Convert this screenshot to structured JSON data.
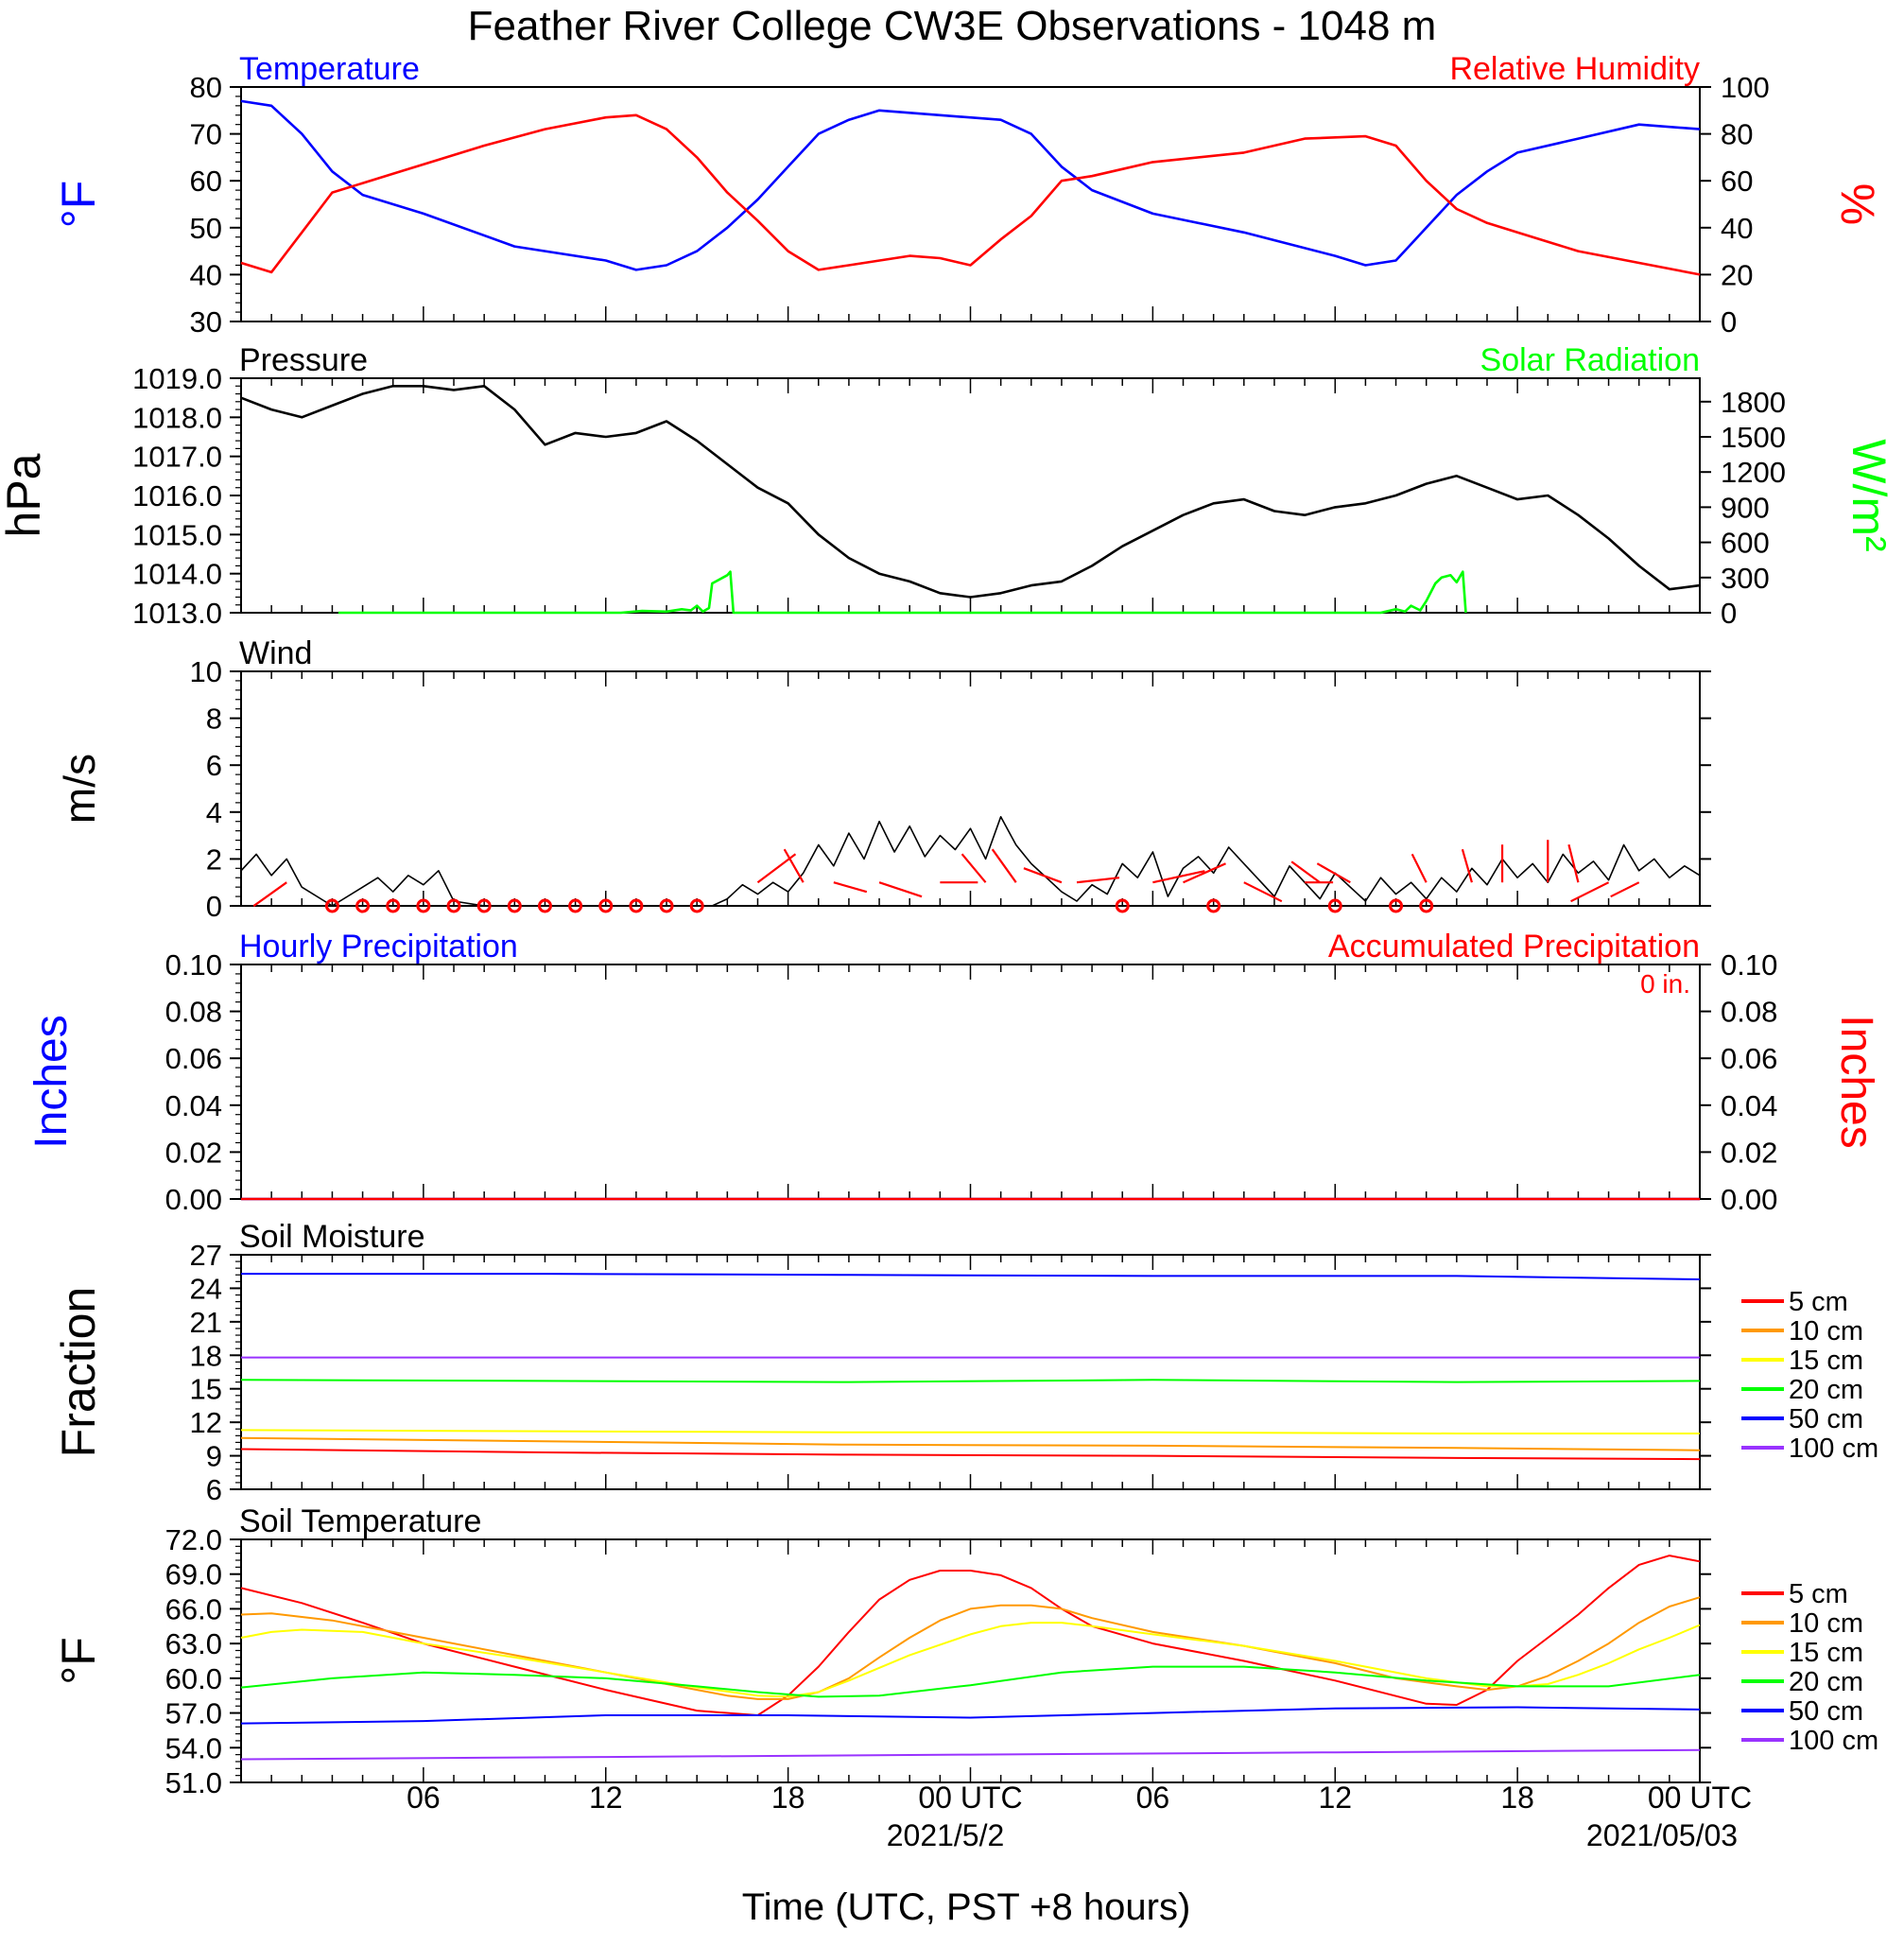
{
  "title": "Feather River College CW3E Observations - 1048 m",
  "x_axis": {
    "label": "Time (UTC, PST +8 hours)",
    "tick_labels": [
      "06",
      "12",
      "18",
      "00 UTC",
      "06",
      "12",
      "18",
      "00 UTC"
    ],
    "date_labels": [
      "2021/5/2",
      "2021/05/03"
    ]
  },
  "chart_data": [
    {
      "type": "line",
      "panel": "Temperature / Relative Humidity",
      "left_title": "Temperature",
      "right_title": "Relative Humidity",
      "ylabel_left": "°F",
      "ylabel_right": "%",
      "ylim_left": [
        30,
        80
      ],
      "ylim_right": [
        0,
        100
      ],
      "yticks_left": [
        "30",
        "40",
        "50",
        "60",
        "70",
        "80"
      ],
      "yticks_right": [
        "0",
        "20",
        "40",
        "60",
        "80",
        "100"
      ],
      "series": [
        {
          "name": "Temperature",
          "color": "#0000ff",
          "axis": "left",
          "x_hours": [
            0,
            1,
            2,
            3,
            4,
            6,
            9,
            12,
            13,
            14,
            15,
            16,
            17,
            18,
            19,
            20,
            21,
            23,
            25,
            26,
            27,
            28,
            30,
            33,
            36,
            37,
            38,
            39,
            40,
            41,
            42,
            44,
            46,
            48
          ],
          "values": [
            77,
            76,
            70,
            62,
            57,
            53,
            46,
            43,
            41,
            42,
            45,
            50,
            56,
            63,
            70,
            73,
            75,
            74,
            73,
            70,
            63,
            58,
            53,
            49,
            44,
            42,
            43,
            50,
            57,
            62,
            66,
            69,
            72,
            71
          ]
        },
        {
          "name": "Relative Humidity",
          "color": "#ff0000",
          "axis": "right",
          "x_hours": [
            0,
            1,
            2,
            3,
            5,
            8,
            10,
            12,
            13,
            14,
            15,
            16,
            17,
            18,
            19,
            20,
            22,
            23,
            24,
            25,
            26,
            27,
            28,
            29,
            30,
            33,
            35,
            37,
            38,
            39,
            40,
            41,
            42,
            44,
            46,
            48
          ],
          "values": [
            25,
            21,
            38,
            55,
            63,
            75,
            82,
            87,
            88,
            82,
            70,
            55,
            43,
            30,
            22,
            24,
            28,
            27,
            24,
            35,
            45,
            60,
            62,
            65,
            68,
            72,
            78,
            79,
            75,
            60,
            48,
            42,
            38,
            30,
            25,
            20
          ]
        }
      ]
    },
    {
      "type": "line",
      "panel": "Pressure / Solar Radiation",
      "left_title": "Pressure",
      "right_title": "Solar Radiation",
      "ylabel_left": "hPa",
      "ylabel_right": "W/m²",
      "ylim_left": [
        1013.0,
        1019.0
      ],
      "ylim_right": [
        0,
        2000
      ],
      "yticks_left": [
        "1013.0",
        "1014.0",
        "1015.0",
        "1016.0",
        "1017.0",
        "1018.0",
        "1019.0"
      ],
      "yticks_right": [
        "0",
        "300",
        "600",
        "900",
        "1200",
        "1500",
        "1800"
      ],
      "series": [
        {
          "name": "Pressure",
          "color": "#000000",
          "axis": "left",
          "x_hours": [
            0,
            1,
            2,
            3,
            4,
            5,
            6,
            7,
            8,
            9,
            10,
            11,
            12,
            13,
            14,
            15,
            16,
            17,
            18,
            19,
            20,
            21,
            22,
            23,
            24,
            25,
            26,
            27,
            28,
            29,
            30,
            31,
            32,
            33,
            34,
            35,
            36,
            37,
            38,
            39,
            40,
            41,
            42,
            43,
            44,
            45,
            46,
            47,
            48
          ],
          "values": [
            1018.5,
            1018.2,
            1018.0,
            1018.3,
            1018.6,
            1018.8,
            1018.8,
            1018.7,
            1018.8,
            1018.2,
            1017.3,
            1017.6,
            1017.5,
            1017.6,
            1017.9,
            1017.4,
            1016.8,
            1016.2,
            1015.8,
            1015.0,
            1014.4,
            1014.0,
            1013.8,
            1013.5,
            1013.4,
            1013.5,
            1013.7,
            1013.8,
            1014.2,
            1014.7,
            1015.1,
            1015.5,
            1015.8,
            1015.9,
            1015.6,
            1015.5,
            1015.7,
            1015.8,
            1016.0,
            1016.3,
            1016.5,
            1016.2,
            1015.9,
            1016.0,
            1015.5,
            1014.9,
            1014.2,
            1013.6,
            1013.7
          ]
        },
        {
          "name": "Solar Radiation",
          "color": "#00ff00",
          "axis": "right",
          "x_hours": [
            3.2,
            12.5,
            13.2,
            14.0,
            14.5,
            14.8,
            15.0,
            15.2,
            15.4,
            15.5,
            16.0,
            16.1,
            16.2,
            26.8,
            27.5,
            35.0,
            37.5,
            38.0,
            38.3,
            38.5,
            38.8,
            39.0,
            39.3,
            39.5,
            39.8,
            40.0,
            40.2,
            40.3
          ],
          "values": [
            0,
            0,
            15,
            10,
            30,
            20,
            60,
            10,
            40,
            250,
            320,
            350,
            0,
            0,
            0,
            0,
            0,
            30,
            10,
            60,
            20,
            100,
            250,
            300,
            320,
            260,
            350,
            0
          ]
        }
      ]
    },
    {
      "type": "line",
      "panel": "Wind",
      "left_title": "Wind",
      "ylabel_left": "m/s",
      "ylim_left": [
        0,
        10
      ],
      "yticks_left": [
        "0",
        "2",
        "4",
        "6",
        "8",
        "10"
      ],
      "series": [
        {
          "name": "Wind",
          "color": "#000000",
          "axis": "left",
          "x_hours": [
            0,
            0.5,
            1,
            1.5,
            2,
            3,
            4,
            4.5,
            5,
            5.5,
            6,
            6.5,
            7,
            8,
            10,
            12,
            14,
            15,
            15.5,
            16,
            16.5,
            17,
            17.5,
            18,
            18.5,
            19,
            19.5,
            20,
            20.5,
            21,
            21.5,
            22,
            22.5,
            23,
            23.5,
            24,
            24.5,
            25,
            25.5,
            26,
            26.5,
            27,
            27.5,
            28,
            28.5,
            29,
            29.5,
            30,
            30.5,
            31,
            31.5,
            32,
            32.5,
            33,
            33.5,
            34,
            34.5,
            35,
            35.5,
            36,
            36.5,
            37,
            37.5,
            38,
            38.5,
            39,
            39.5,
            40,
            40.5,
            41,
            41.5,
            42,
            42.5,
            43,
            43.5,
            44,
            44.5,
            45,
            45.5,
            46,
            46.5,
            47,
            47.5,
            48
          ],
          "values": [
            1.5,
            2.2,
            1.3,
            2.0,
            0.8,
            0.0,
            0.8,
            1.2,
            0.6,
            1.3,
            0.9,
            1.5,
            0.2,
            0.0,
            0.0,
            0.0,
            0.0,
            0.0,
            0.0,
            0.3,
            0.9,
            0.5,
            1.0,
            0.6,
            1.4,
            2.6,
            1.7,
            3.1,
            2.0,
            3.6,
            2.3,
            3.4,
            2.1,
            3.0,
            2.4,
            3.3,
            2.0,
            3.8,
            2.6,
            1.8,
            1.2,
            0.6,
            0.2,
            0.9,
            0.5,
            1.8,
            1.2,
            2.3,
            0.4,
            1.6,
            2.1,
            1.4,
            2.5,
            1.8,
            1.1,
            0.4,
            1.7,
            1.0,
            0.3,
            1.4,
            0.8,
            0.2,
            1.2,
            0.5,
            1.0,
            0.3,
            1.2,
            0.6,
            1.6,
            0.9,
            2.0,
            1.2,
            1.8,
            1.0,
            2.2,
            1.4,
            1.9,
            1.1,
            2.6,
            1.5,
            2.0,
            1.2,
            1.7,
            1.3
          ]
        }
      ]
    },
    {
      "type": "line",
      "panel": "Precipitation",
      "left_title": "Hourly Precipitation",
      "right_title": "Accumulated Precipitation",
      "annotation": "0 in.",
      "ylabel_left": "Inches",
      "ylabel_right": "Inches",
      "ylim_left": [
        0,
        0.1
      ],
      "ylim_right": [
        0,
        0.1
      ],
      "yticks_left": [
        "0.00",
        "0.02",
        "0.04",
        "0.06",
        "0.08",
        "0.10"
      ],
      "yticks_right": [
        "0.00",
        "0.02",
        "0.04",
        "0.06",
        "0.08",
        "0.10"
      ],
      "series": [
        {
          "name": "Hourly Precipitation",
          "color": "#0000ff",
          "axis": "left",
          "x_hours": [
            0,
            48
          ],
          "values": [
            0,
            0
          ]
        },
        {
          "name": "Accumulated Precipitation",
          "color": "#ff0000",
          "axis": "right",
          "x_hours": [
            0,
            48
          ],
          "values": [
            0,
            0
          ]
        }
      ]
    },
    {
      "type": "line",
      "panel": "Soil Moisture",
      "left_title": "Soil Moisture",
      "ylabel_left": "Fraction",
      "ylim_left": [
        6,
        27
      ],
      "yticks_left": [
        "6",
        "9",
        "12",
        "15",
        "18",
        "21",
        "24",
        "27"
      ],
      "legend": [
        "5 cm",
        "10 cm",
        "15 cm",
        "20 cm",
        "50 cm",
        "100 cm"
      ],
      "series": [
        {
          "name": "5 cm",
          "color": "#ff0000",
          "x_hours": [
            0,
            10,
            20,
            30,
            40,
            48
          ],
          "values": [
            9.6,
            9.3,
            9.1,
            9.0,
            8.8,
            8.7
          ]
        },
        {
          "name": "10 cm",
          "color": "#ff9900",
          "x_hours": [
            0,
            10,
            20,
            30,
            40,
            48
          ],
          "values": [
            10.6,
            10.3,
            10.0,
            9.9,
            9.7,
            9.5
          ]
        },
        {
          "name": "15 cm",
          "color": "#ffff00",
          "x_hours": [
            0,
            10,
            20,
            30,
            40,
            48
          ],
          "values": [
            11.3,
            11.2,
            11.1,
            11.1,
            11.0,
            11.0
          ]
        },
        {
          "name": "20 cm",
          "color": "#00ff00",
          "x_hours": [
            0,
            10,
            20,
            30,
            40,
            48
          ],
          "values": [
            15.8,
            15.7,
            15.6,
            15.8,
            15.6,
            15.7
          ]
        },
        {
          "name": "50 cm",
          "color": "#0000ff",
          "x_hours": [
            0,
            10,
            20,
            30,
            40,
            48
          ],
          "values": [
            25.3,
            25.3,
            25.2,
            25.1,
            25.1,
            24.8
          ]
        },
        {
          "name": "100 cm",
          "color": "#9933ff",
          "x_hours": [
            0,
            10,
            20,
            30,
            40,
            48
          ],
          "values": [
            17.8,
            17.8,
            17.8,
            17.8,
            17.8,
            17.8
          ]
        }
      ]
    },
    {
      "type": "line",
      "panel": "Soil Temperature",
      "left_title": "Soil Temperature",
      "ylabel_left": "°F",
      "ylim_left": [
        51.0,
        72.0
      ],
      "yticks_left": [
        "51.0",
        "54.0",
        "57.0",
        "60.0",
        "63.0",
        "66.0",
        "69.0",
        "72.0"
      ],
      "legend": [
        "5 cm",
        "10 cm",
        "15 cm",
        "20 cm",
        "50 cm",
        "100 cm"
      ],
      "series": [
        {
          "name": "5 cm",
          "color": "#ff0000",
          "x_hours": [
            0,
            2,
            4,
            6,
            9,
            12,
            15,
            17,
            18,
            19,
            20,
            21,
            22,
            23,
            24,
            25,
            26,
            27,
            28,
            30,
            33,
            36,
            39,
            40,
            41,
            42,
            43,
            44,
            45,
            46,
            47,
            48
          ],
          "values": [
            67.8,
            66.5,
            64.8,
            63.0,
            61.0,
            59.0,
            57.2,
            56.8,
            58.5,
            61.0,
            64.0,
            66.8,
            68.5,
            69.3,
            69.3,
            68.9,
            67.8,
            66.0,
            64.5,
            63.0,
            61.5,
            59.8,
            57.8,
            57.7,
            59.0,
            61.5,
            63.5,
            65.5,
            67.8,
            69.8,
            70.6,
            70.1
          ]
        },
        {
          "name": "10 cm",
          "color": "#ff9900",
          "x_hours": [
            0,
            1,
            3,
            6,
            9,
            12,
            15,
            16,
            17,
            18,
            19,
            20,
            21,
            22,
            23,
            24,
            25,
            26,
            27,
            28,
            30,
            33,
            36,
            38,
            40,
            41,
            42,
            43,
            44,
            45,
            46,
            47,
            48
          ],
          "values": [
            65.5,
            65.6,
            65.0,
            63.5,
            62.0,
            60.5,
            59.0,
            58.5,
            58.2,
            58.2,
            58.8,
            60.0,
            61.8,
            63.5,
            65.0,
            66.0,
            66.3,
            66.3,
            66.0,
            65.2,
            64.0,
            62.8,
            61.3,
            60.0,
            59.3,
            59.0,
            59.3,
            60.2,
            61.5,
            63.0,
            64.8,
            66.2,
            67.0
          ]
        },
        {
          "name": "15 cm",
          "color": "#ffff00",
          "x_hours": [
            0,
            1,
            2,
            4,
            6,
            9,
            12,
            15,
            17,
            18,
            19,
            20,
            22,
            24,
            25,
            26,
            27,
            28,
            30,
            33,
            36,
            39,
            41,
            42,
            43,
            44,
            45,
            46,
            47,
            48
          ],
          "values": [
            63.5,
            64.0,
            64.2,
            64.0,
            63.0,
            61.8,
            60.5,
            59.2,
            58.5,
            58.4,
            58.8,
            59.8,
            62.0,
            63.8,
            64.5,
            64.8,
            64.8,
            64.5,
            63.8,
            62.8,
            61.5,
            60.0,
            59.3,
            59.3,
            59.5,
            60.3,
            61.3,
            62.5,
            63.5,
            64.6
          ]
        },
        {
          "name": "20 cm",
          "color": "#00ff00",
          "x_hours": [
            0,
            3,
            6,
            9,
            12,
            15,
            17,
            19,
            21,
            24,
            27,
            30,
            33,
            36,
            39,
            42,
            45,
            48
          ],
          "values": [
            59.2,
            60.0,
            60.5,
            60.3,
            60.0,
            59.3,
            58.8,
            58.4,
            58.5,
            59.4,
            60.5,
            61.0,
            61.0,
            60.5,
            59.8,
            59.3,
            59.3,
            60.3
          ]
        },
        {
          "name": "50 cm",
          "color": "#0000ff",
          "x_hours": [
            0,
            6,
            12,
            18,
            24,
            30,
            36,
            42,
            48
          ],
          "values": [
            56.1,
            56.3,
            56.8,
            56.8,
            56.6,
            57.0,
            57.4,
            57.5,
            57.3
          ]
        },
        {
          "name": "100 cm",
          "color": "#9933ff",
          "x_hours": [
            0,
            12,
            24,
            36,
            48
          ],
          "values": [
            53.0,
            53.2,
            53.4,
            53.6,
            53.8
          ]
        }
      ]
    }
  ]
}
